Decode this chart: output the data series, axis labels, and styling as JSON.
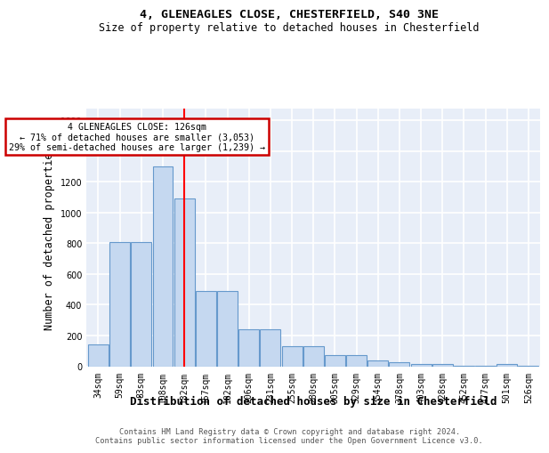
{
  "title1": "4, GLENEAGLES CLOSE, CHESTERFIELD, S40 3NE",
  "title2": "Size of property relative to detached houses in Chesterfield",
  "xlabel": "Distribution of detached houses by size in Chesterfield",
  "ylabel": "Number of detached properties",
  "bar_labels": [
    "34sqm",
    "59sqm",
    "83sqm",
    "108sqm",
    "132sqm",
    "157sqm",
    "182sqm",
    "206sqm",
    "231sqm",
    "255sqm",
    "280sqm",
    "305sqm",
    "329sqm",
    "354sqm",
    "378sqm",
    "403sqm",
    "428sqm",
    "452sqm",
    "477sqm",
    "501sqm",
    "526sqm"
  ],
  "bar_heights": [
    140,
    810,
    810,
    1300,
    1090,
    490,
    490,
    240,
    240,
    130,
    130,
    75,
    75,
    40,
    25,
    15,
    15,
    5,
    5,
    15,
    5
  ],
  "bar_color": "#c5d8f0",
  "bar_edge_color": "#6699cc",
  "bg_color": "#e8eef8",
  "grid_color": "#ffffff",
  "red_line_x": 4.0,
  "annotation_title": "4 GLENEAGLES CLOSE: 126sqm",
  "annotation_line1": "← 71% of detached houses are smaller (3,053)",
  "annotation_line2": "29% of semi-detached houses are larger (1,239) →",
  "annotation_box_color": "#ffffff",
  "annotation_box_edge": "#cc0000",
  "footer1": "Contains HM Land Registry data © Crown copyright and database right 2024.",
  "footer2": "Contains public sector information licensed under the Open Government Licence v3.0.",
  "ylim": [
    0,
    1680
  ],
  "yticks": [
    0,
    200,
    400,
    600,
    800,
    1000,
    1200,
    1400,
    1600
  ]
}
